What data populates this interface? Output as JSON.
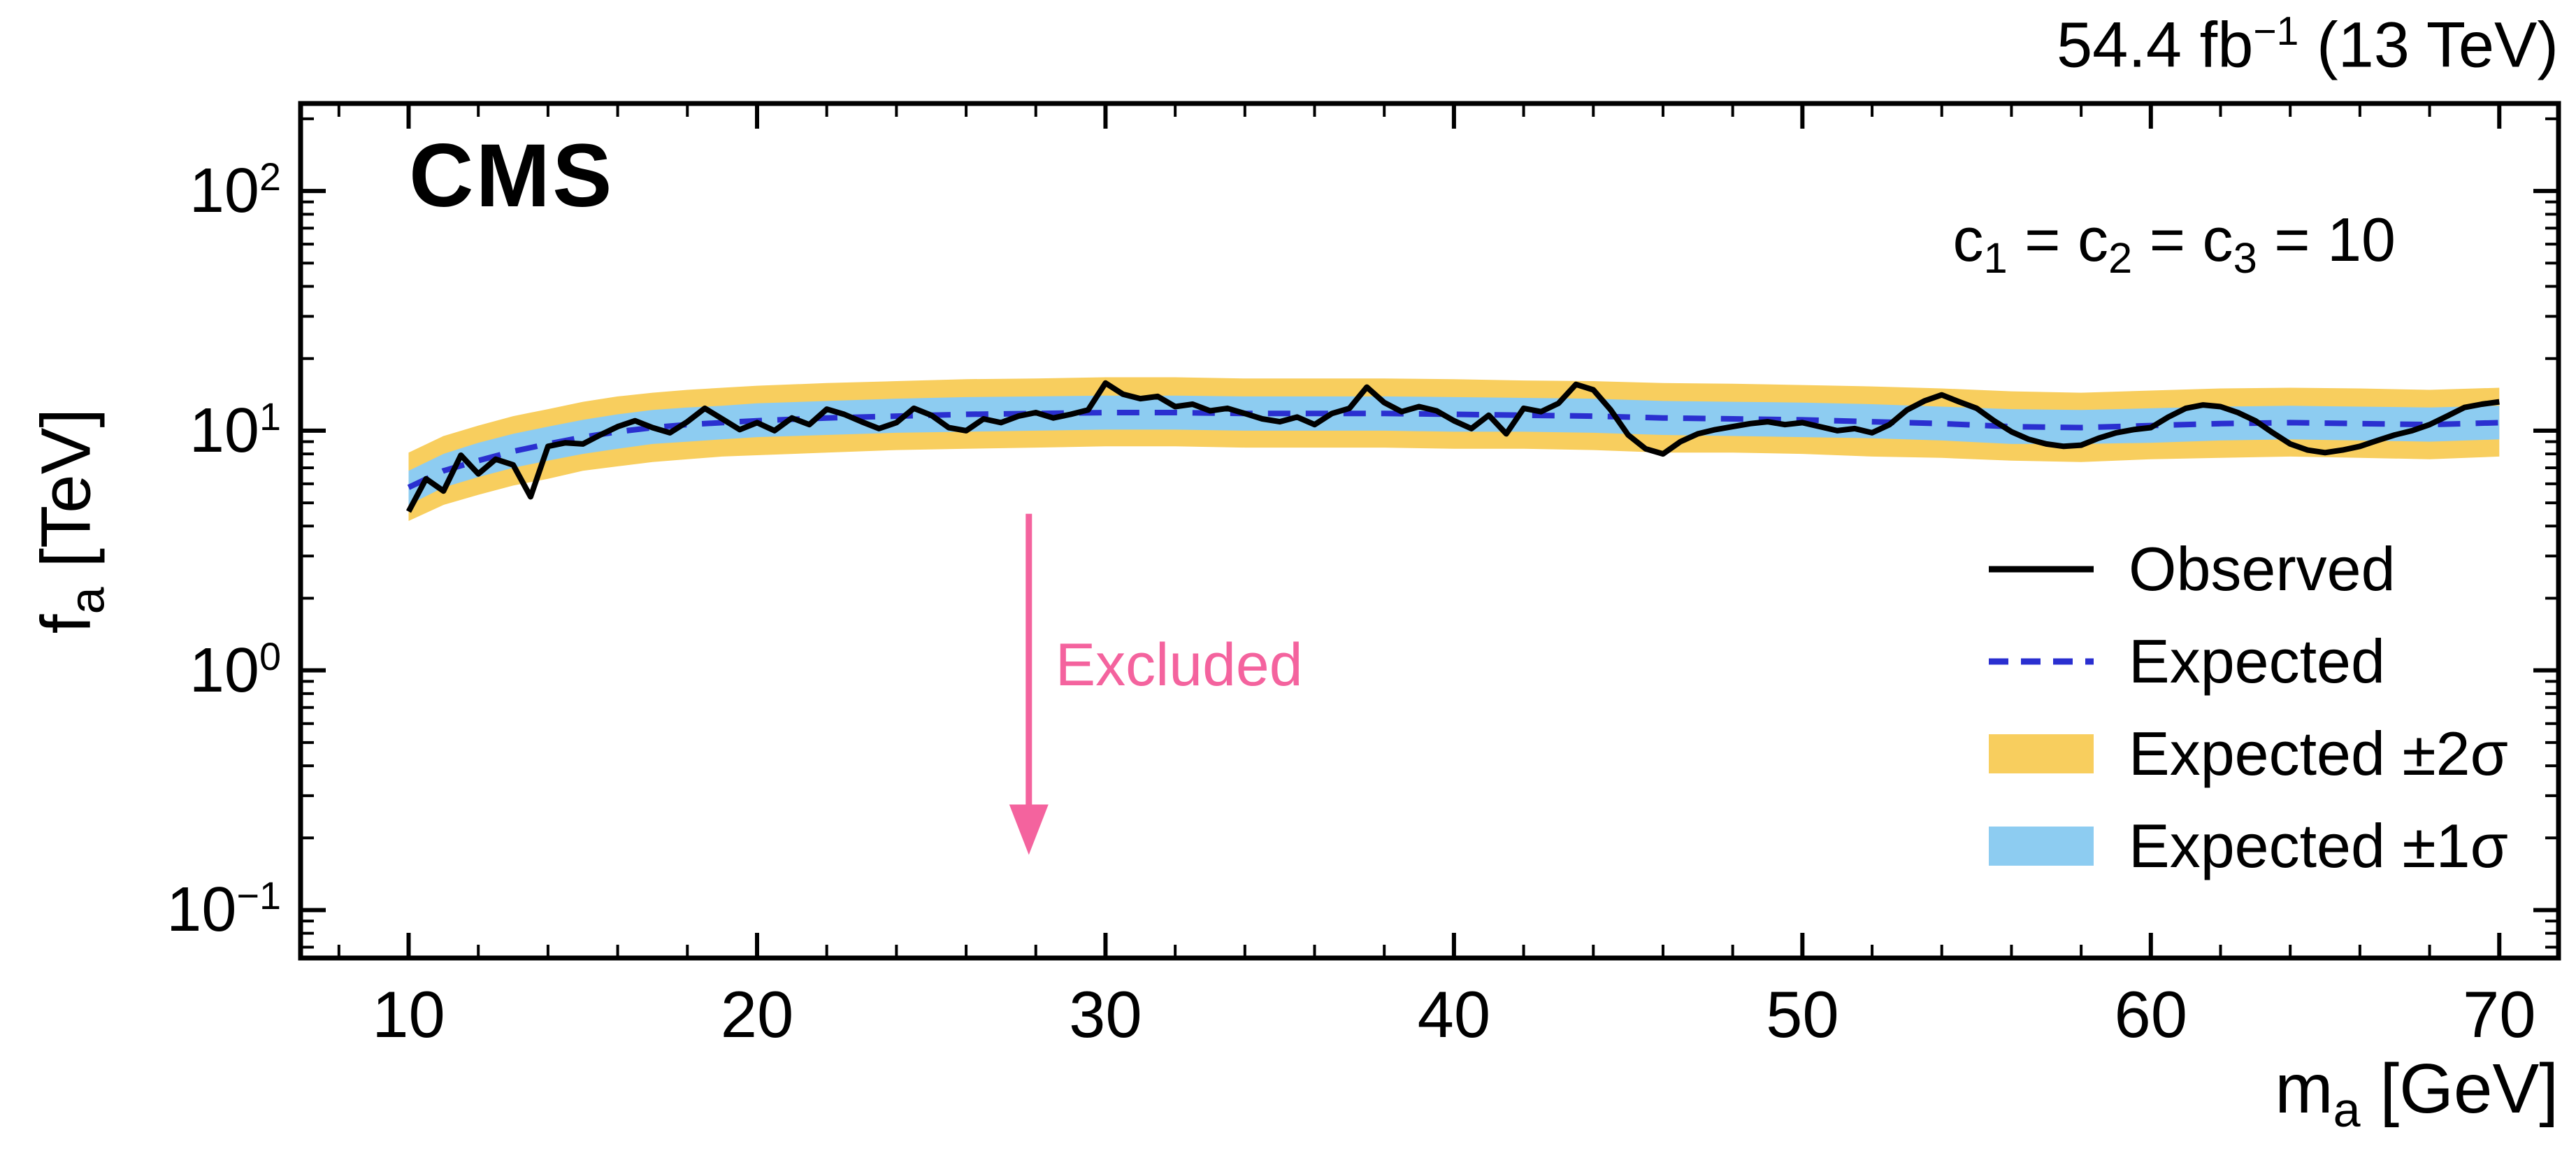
{
  "header": {
    "lumi_main": "54.4 fb",
    "lumi_sup": "−1",
    "lumi_rest": " (13 TeV)",
    "cms": "CMS",
    "coupling": {
      "c1": "c",
      "s1": "1",
      "mid1": " = c",
      "s2": "2",
      "mid2": " = c",
      "s3": "3",
      "tail": " = 10"
    }
  },
  "axes": {
    "x_title_main": "m",
    "x_title_sub": "a",
    "x_title_unit": " [GeV]",
    "y_title_main": "f",
    "y_title_sub": "a",
    "y_title_unit": " [TeV]",
    "x_ticks": [
      10,
      20,
      30,
      40,
      50,
      60,
      70
    ],
    "y_ticks": [
      {
        "base": "10",
        "exp": "2",
        "log": 2
      },
      {
        "base": "10",
        "exp": "1",
        "log": 1
      },
      {
        "base": "10",
        "exp": "0",
        "log": 0
      },
      {
        "base": "10",
        "exp": "−1",
        "log": -1
      }
    ],
    "x_range": [
      6.9,
      71.7
    ],
    "y_log_range": [
      -1.2,
      2.365
    ]
  },
  "annotation": {
    "excluded_label": "Excluded",
    "arrow_x_gev": 27.8,
    "arrow_top_tev": 4.5,
    "arrow_tip_tev": 0.17
  },
  "legend": [
    {
      "label": "Observed",
      "marker": "line-solid"
    },
    {
      "label": "Expected",
      "marker": "line-dashed"
    },
    {
      "label": "Expected ±2σ",
      "marker": "band-yellow"
    },
    {
      "label": "Expected ±1σ",
      "marker": "band-blue"
    }
  ],
  "colors": {
    "observed": "#000000",
    "expected": "#2a2fd0",
    "band_1sigma": "#8dccf1",
    "band_2sigma": "#f8ce5e",
    "excluded": "#f4639e",
    "frame": "#000000"
  },
  "chart_data": {
    "type": "line",
    "title": "CMS upper limits on f_a vs m_a, c1 = c2 = c3 = 10",
    "xlabel": "m_a [GeV]",
    "ylabel": "f_a [TeV]",
    "x_range": [
      6.9,
      71.7
    ],
    "y_scale": "log",
    "y_range": [
      0.063,
      231
    ],
    "grid": false,
    "legend_position": "right-middle-inside",
    "expected": {
      "x": [
        10,
        11,
        12,
        13,
        14,
        15,
        16,
        17,
        18,
        19,
        20,
        22,
        24,
        26,
        28,
        30,
        32,
        34,
        36,
        38,
        40,
        42,
        44,
        46,
        48,
        50,
        52,
        54,
        56,
        58,
        60,
        62,
        64,
        66,
        68,
        70
      ],
      "y": [
        5.8,
        6.8,
        7.5,
        8.2,
        8.8,
        9.4,
        9.9,
        10.3,
        10.6,
        10.8,
        11.0,
        11.3,
        11.5,
        11.7,
        11.8,
        11.9,
        11.9,
        11.8,
        11.8,
        11.8,
        11.7,
        11.6,
        11.5,
        11.3,
        11.2,
        11.1,
        10.9,
        10.7,
        10.4,
        10.3,
        10.5,
        10.7,
        10.8,
        10.7,
        10.6,
        10.8
      ]
    },
    "band_1sigma": {
      "upper": [
        6.8,
        8.0,
        8.9,
        9.7,
        10.4,
        11.1,
        11.7,
        12.2,
        12.5,
        12.7,
        13.0,
        13.3,
        13.6,
        13.8,
        13.9,
        14.0,
        14.0,
        13.9,
        13.9,
        13.9,
        13.8,
        13.7,
        13.6,
        13.3,
        13.2,
        13.1,
        12.9,
        12.6,
        12.3,
        12.2,
        12.4,
        12.6,
        12.7,
        12.6,
        12.5,
        12.7
      ],
      "lower": [
        4.9,
        5.8,
        6.4,
        7.0,
        7.5,
        8.0,
        8.4,
        8.8,
        9.0,
        9.2,
        9.4,
        9.6,
        9.8,
        9.9,
        10.0,
        10.1,
        10.1,
        10.0,
        10.0,
        10.0,
        9.9,
        9.9,
        9.8,
        9.6,
        9.5,
        9.4,
        9.3,
        9.1,
        8.8,
        8.8,
        8.9,
        9.1,
        9.2,
        9.1,
        9.0,
        9.2
      ]
    },
    "band_2sigma": {
      "upper": [
        8.1,
        9.5,
        10.5,
        11.5,
        12.3,
        13.2,
        13.9,
        14.4,
        14.8,
        15.1,
        15.4,
        15.8,
        16.1,
        16.4,
        16.5,
        16.7,
        16.7,
        16.5,
        16.5,
        16.5,
        16.4,
        16.2,
        16.1,
        15.8,
        15.7,
        15.5,
        15.3,
        15.0,
        14.6,
        14.4,
        14.7,
        15.0,
        15.1,
        15.0,
        14.8,
        15.1
      ],
      "lower": [
        4.2,
        4.9,
        5.4,
        5.9,
        6.3,
        6.8,
        7.1,
        7.4,
        7.6,
        7.8,
        7.9,
        8.1,
        8.3,
        8.4,
        8.5,
        8.6,
        8.6,
        8.5,
        8.5,
        8.5,
        8.4,
        8.4,
        8.3,
        8.1,
        8.1,
        8.0,
        7.8,
        7.7,
        7.5,
        7.4,
        7.6,
        7.7,
        7.8,
        7.7,
        7.6,
        7.8
      ]
    },
    "observed": {
      "x_start": 10,
      "x_step": 0.5,
      "y": [
        4.6,
        6.3,
        5.6,
        7.9,
        6.6,
        7.6,
        7.2,
        5.3,
        8.6,
        8.9,
        8.8,
        9.6,
        10.4,
        11.0,
        10.3,
        9.8,
        10.9,
        12.4,
        11.2,
        10.1,
        10.8,
        10.0,
        11.3,
        10.6,
        12.3,
        11.7,
        10.9,
        10.2,
        10.8,
        12.4,
        11.6,
        10.3,
        10.0,
        11.2,
        10.8,
        11.5,
        11.9,
        11.3,
        11.7,
        12.2,
        15.8,
        14.2,
        13.6,
        13.9,
        12.6,
        12.9,
        12.1,
        12.4,
        11.8,
        11.2,
        10.9,
        11.4,
        10.6,
        11.8,
        12.4,
        15.2,
        13.1,
        12.0,
        12.6,
        12.1,
        11.0,
        10.2,
        11.6,
        9.7,
        12.4,
        12.0,
        13.0,
        15.6,
        14.8,
        12.2,
        9.6,
        8.4,
        8.0,
        9.0,
        9.7,
        10.1,
        10.4,
        10.7,
        10.9,
        10.6,
        10.8,
        10.4,
        10.0,
        10.2,
        9.8,
        10.6,
        12.2,
        13.3,
        14.1,
        13.2,
        12.4,
        11.0,
        9.9,
        9.2,
        8.8,
        8.6,
        8.7,
        9.3,
        9.8,
        10.1,
        10.3,
        11.4,
        12.4,
        12.8,
        12.6,
        11.9,
        11.0,
        9.8,
        8.8,
        8.3,
        8.1,
        8.3,
        8.6,
        9.1,
        9.6,
        10.0,
        10.6,
        11.5,
        12.5,
        12.9,
        13.2
      ]
    }
  }
}
